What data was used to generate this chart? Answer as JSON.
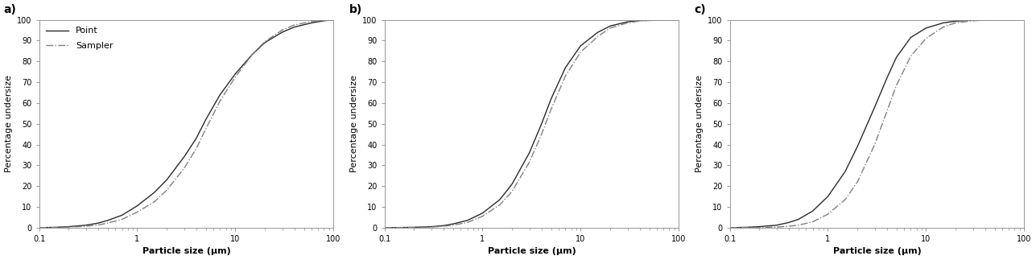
{
  "panels": [
    {
      "label": "a)",
      "point_x": [
        0.1,
        0.15,
        0.2,
        0.3,
        0.4,
        0.5,
        0.7,
        1.0,
        1.5,
        2.0,
        3.0,
        4.0,
        5.0,
        7.0,
        10.0,
        15.0,
        20.0,
        30.0,
        40.0,
        60.0,
        80.0,
        100.0
      ],
      "point_y": [
        0.0,
        0.2,
        0.5,
        1.2,
        2.2,
        3.5,
        6.0,
        10.5,
        17.0,
        23.0,
        34.0,
        43.0,
        52.0,
        64.0,
        74.0,
        83.5,
        89.0,
        94.0,
        96.5,
        98.5,
        99.5,
        100.0
      ],
      "sampler_x": [
        0.1,
        0.15,
        0.2,
        0.3,
        0.4,
        0.5,
        0.7,
        1.0,
        1.5,
        2.0,
        3.0,
        4.0,
        5.0,
        7.0,
        10.0,
        15.0,
        20.0,
        30.0,
        40.0,
        60.0,
        80.0,
        100.0
      ],
      "sampler_y": [
        0.0,
        0.1,
        0.3,
        0.7,
        1.3,
        2.2,
        4.0,
        7.5,
        12.5,
        18.0,
        28.5,
        38.0,
        47.5,
        61.0,
        72.5,
        83.5,
        89.5,
        95.0,
        97.5,
        99.2,
        99.8,
        100.0
      ],
      "show_legend": true,
      "ylabel": "Percentage undersize"
    },
    {
      "label": "b)",
      "point_x": [
        0.1,
        0.15,
        0.2,
        0.3,
        0.4,
        0.5,
        0.7,
        1.0,
        1.5,
        2.0,
        3.0,
        4.0,
        5.0,
        7.0,
        10.0,
        15.0,
        20.0,
        30.0,
        40.0,
        60.0,
        80.0,
        100.0
      ],
      "point_y": [
        0.0,
        0.1,
        0.2,
        0.5,
        1.0,
        1.8,
        3.5,
        7.0,
        13.5,
        21.0,
        36.0,
        50.0,
        62.0,
        77.0,
        87.5,
        94.0,
        97.0,
        99.0,
        99.6,
        99.9,
        100.0,
        100.0
      ],
      "sampler_x": [
        0.1,
        0.15,
        0.2,
        0.3,
        0.4,
        0.5,
        0.7,
        1.0,
        1.5,
        2.0,
        3.0,
        4.0,
        5.0,
        7.0,
        10.0,
        15.0,
        20.0,
        30.0,
        40.0,
        60.0,
        80.0,
        100.0
      ],
      "sampler_y": [
        0.0,
        0.05,
        0.1,
        0.3,
        0.7,
        1.2,
        2.5,
        5.5,
        11.0,
        17.5,
        31.5,
        45.0,
        57.0,
        73.0,
        84.5,
        92.0,
        96.0,
        98.5,
        99.4,
        99.8,
        100.0,
        100.0
      ],
      "show_legend": false,
      "ylabel": "Percentage undersize"
    },
    {
      "label": "c)",
      "point_x": [
        0.1,
        0.15,
        0.2,
        0.3,
        0.4,
        0.5,
        0.7,
        1.0,
        1.5,
        2.0,
        3.0,
        4.0,
        5.0,
        7.0,
        10.0,
        15.0,
        20.0,
        30.0,
        40.0,
        60.0,
        80.0,
        100.0
      ],
      "point_y": [
        0.0,
        0.2,
        0.5,
        1.2,
        2.5,
        4.0,
        8.0,
        15.0,
        27.0,
        39.0,
        58.0,
        72.0,
        82.0,
        91.5,
        96.0,
        98.5,
        99.3,
        99.8,
        99.95,
        100.0,
        100.0,
        100.0
      ],
      "sampler_x": [
        0.1,
        0.15,
        0.2,
        0.3,
        0.4,
        0.5,
        0.7,
        1.0,
        1.5,
        2.0,
        3.0,
        4.0,
        5.0,
        7.0,
        10.0,
        15.0,
        20.0,
        30.0,
        40.0,
        60.0,
        80.0,
        100.0
      ],
      "sampler_y": [
        0.0,
        0.05,
        0.1,
        0.3,
        0.7,
        1.2,
        2.8,
        6.5,
        13.5,
        22.0,
        40.0,
        56.0,
        68.5,
        82.5,
        91.0,
        96.5,
        98.5,
        99.5,
        99.8,
        100.0,
        100.0,
        100.0
      ],
      "show_legend": false,
      "ylabel": "Percentage undersize"
    }
  ],
  "xlabel": "Particle size (μm)",
  "xlim": [
    0.1,
    100
  ],
  "ylim": [
    0,
    100
  ],
  "yticks": [
    0,
    10,
    20,
    30,
    40,
    50,
    60,
    70,
    80,
    90,
    100
  ],
  "line_color": "#2a2a2a",
  "sampler_color": "#808080",
  "line_style_point": "-",
  "line_style_sampler": "-.",
  "line_width": 1.0,
  "legend_label_point": "Point",
  "legend_label_sampler": "Sampler",
  "background_color": "#ffffff",
  "tick_fontsize": 7,
  "label_fontsize": 8,
  "panel_label_fontsize": 10
}
